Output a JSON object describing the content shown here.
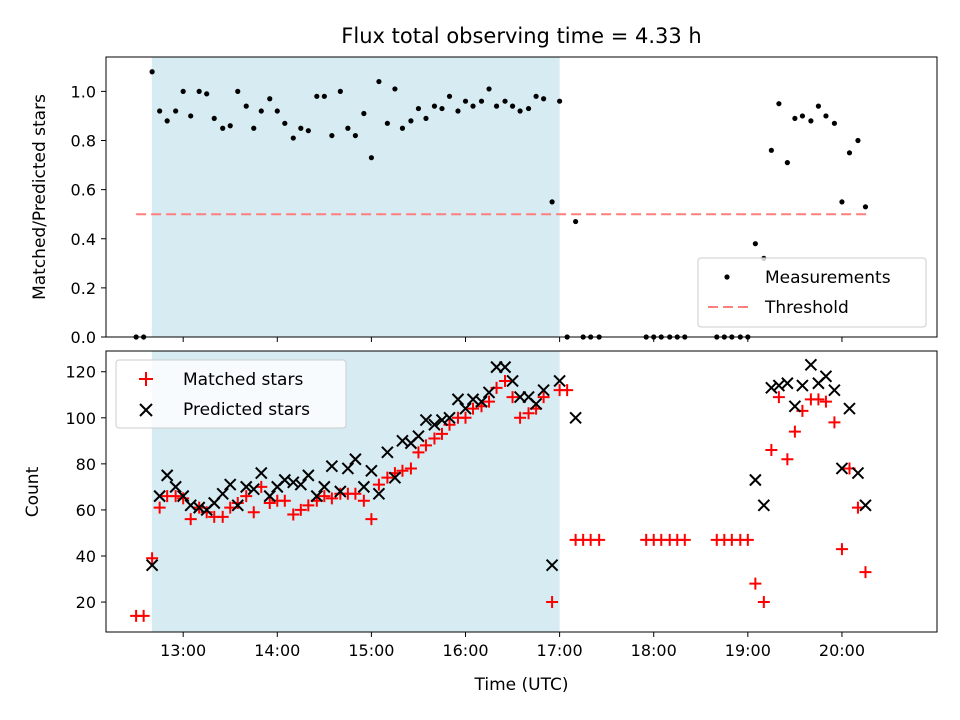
{
  "chart_data": {
    "title": "Flux total observing time = 4.33 h",
    "xlabel": "Time (UTC)",
    "xlim": [
      12.18,
      21.01
    ],
    "xticks": [
      {
        "v": 13,
        "label": "13:00"
      },
      {
        "v": 14,
        "label": "14:00"
      },
      {
        "v": 15,
        "label": "15:00"
      },
      {
        "v": 16,
        "label": "16:00"
      },
      {
        "v": 17,
        "label": "17:00"
      },
      {
        "v": 18,
        "label": "18:00"
      },
      {
        "v": 19,
        "label": "19:00"
      },
      {
        "v": 20,
        "label": "20:00"
      }
    ],
    "shaded_span": [
      12.667,
      17.0
    ],
    "shade_color": "#add8e6",
    "top": {
      "type": "scatter",
      "ylabel": "Matched/Predicted stars",
      "ylim": [
        0,
        1.14
      ],
      "yticks": [
        "0.0",
        "0.2",
        "0.4",
        "0.6",
        "0.8",
        "1.0"
      ],
      "threshold": 0.5,
      "threshold_color": "#ff7f7f",
      "threshold_x": [
        12.5,
        20.27
      ],
      "legend": [
        "Measurements",
        "Threshold"
      ],
      "points": [
        [
          12.5,
          0
        ],
        [
          12.58,
          0
        ],
        [
          12.67,
          1.08
        ],
        [
          12.75,
          0.92
        ],
        [
          12.83,
          0.88
        ],
        [
          12.92,
          0.92
        ],
        [
          13.0,
          1.0
        ],
        [
          13.08,
          0.9
        ],
        [
          13.17,
          1.0
        ],
        [
          13.25,
          0.99
        ],
        [
          13.33,
          0.89
        ],
        [
          13.42,
          0.85
        ],
        [
          13.5,
          0.86
        ],
        [
          13.58,
          1.0
        ],
        [
          13.67,
          0.94
        ],
        [
          13.75,
          0.85
        ],
        [
          13.83,
          0.92
        ],
        [
          13.92,
          0.97
        ],
        [
          14.0,
          0.92
        ],
        [
          14.08,
          0.87
        ],
        [
          14.17,
          0.81
        ],
        [
          14.25,
          0.85
        ],
        [
          14.33,
          0.84
        ],
        [
          14.42,
          0.98
        ],
        [
          14.5,
          0.98
        ],
        [
          14.58,
          0.82
        ],
        [
          14.67,
          1.0
        ],
        [
          14.75,
          0.85
        ],
        [
          14.83,
          0.82
        ],
        [
          14.92,
          0.91
        ],
        [
          15.0,
          0.73
        ],
        [
          15.08,
          1.04
        ],
        [
          15.17,
          0.87
        ],
        [
          15.25,
          1.01
        ],
        [
          15.33,
          0.85
        ],
        [
          15.42,
          0.88
        ],
        [
          15.5,
          0.93
        ],
        [
          15.58,
          0.89
        ],
        [
          15.67,
          0.94
        ],
        [
          15.75,
          0.93
        ],
        [
          15.83,
          0.98
        ],
        [
          15.92,
          0.92
        ],
        [
          16.0,
          0.96
        ],
        [
          16.08,
          0.94
        ],
        [
          16.17,
          0.96
        ],
        [
          16.25,
          1.01
        ],
        [
          16.33,
          0.94
        ],
        [
          16.42,
          0.96
        ],
        [
          16.5,
          0.94
        ],
        [
          16.58,
          0.92
        ],
        [
          16.67,
          0.93
        ],
        [
          16.75,
          0.98
        ],
        [
          16.83,
          0.97
        ],
        [
          16.92,
          0.55
        ],
        [
          17.0,
          0.96
        ],
        [
          17.08,
          0
        ],
        [
          17.17,
          0.47
        ],
        [
          17.25,
          0
        ],
        [
          17.33,
          0
        ],
        [
          17.42,
          0
        ],
        [
          17.92,
          0
        ],
        [
          18.0,
          0
        ],
        [
          18.08,
          0
        ],
        [
          18.17,
          0
        ],
        [
          18.25,
          0
        ],
        [
          18.33,
          0
        ],
        [
          18.67,
          0
        ],
        [
          18.75,
          0
        ],
        [
          18.83,
          0
        ],
        [
          18.92,
          0
        ],
        [
          19.0,
          0
        ],
        [
          19.08,
          0.38
        ],
        [
          19.17,
          0.32
        ],
        [
          19.25,
          0.76
        ],
        [
          19.33,
          0.95
        ],
        [
          19.42,
          0.71
        ],
        [
          19.5,
          0.89
        ],
        [
          19.58,
          0.9
        ],
        [
          19.67,
          0.88
        ],
        [
          19.75,
          0.94
        ],
        [
          19.83,
          0.9
        ],
        [
          19.92,
          0.87
        ],
        [
          20.0,
          0.55
        ],
        [
          20.08,
          0.75
        ],
        [
          20.17,
          0.8
        ],
        [
          20.25,
          0.53
        ]
      ]
    },
    "bottom": {
      "type": "scatter",
      "ylabel": "Count",
      "ylim": [
        7,
        129
      ],
      "yticks": [
        "20",
        "40",
        "60",
        "80",
        "100",
        "120"
      ],
      "legend": [
        "Matched stars",
        "Predicted stars"
      ],
      "matched_color": "#ff0000",
      "predicted_color": "#000000",
      "matched": [
        [
          12.5,
          14
        ],
        [
          12.58,
          14
        ],
        [
          12.67,
          39
        ],
        [
          12.75,
          61
        ],
        [
          12.83,
          66
        ],
        [
          12.92,
          66
        ],
        [
          13.0,
          65
        ],
        [
          13.08,
          56
        ],
        [
          13.17,
          61
        ],
        [
          13.25,
          59
        ],
        [
          13.33,
          57
        ],
        [
          13.42,
          57
        ],
        [
          13.5,
          61
        ],
        [
          13.58,
          63
        ],
        [
          13.67,
          66
        ],
        [
          13.75,
          59
        ],
        [
          13.83,
          70
        ],
        [
          13.92,
          63
        ],
        [
          14.0,
          64
        ],
        [
          14.08,
          64
        ],
        [
          14.17,
          58
        ],
        [
          14.25,
          60
        ],
        [
          14.33,
          62
        ],
        [
          14.42,
          64
        ],
        [
          14.5,
          66
        ],
        [
          14.58,
          65
        ],
        [
          14.67,
          67
        ],
        [
          14.75,
          67
        ],
        [
          14.83,
          67
        ],
        [
          14.92,
          64
        ],
        [
          15.0,
          56
        ],
        [
          15.08,
          71
        ],
        [
          15.17,
          74
        ],
        [
          15.25,
          76
        ],
        [
          15.33,
          77
        ],
        [
          15.42,
          78
        ],
        [
          15.5,
          85
        ],
        [
          15.58,
          88
        ],
        [
          15.67,
          91
        ],
        [
          15.75,
          93
        ],
        [
          15.83,
          97
        ],
        [
          15.92,
          100
        ],
        [
          16.0,
          100
        ],
        [
          16.08,
          104
        ],
        [
          16.17,
          105
        ],
        [
          16.25,
          107
        ],
        [
          16.33,
          113
        ],
        [
          16.42,
          116
        ],
        [
          16.5,
          109
        ],
        [
          16.58,
          100
        ],
        [
          16.67,
          102
        ],
        [
          16.75,
          104
        ],
        [
          16.83,
          109
        ],
        [
          16.92,
          20
        ],
        [
          17.0,
          112
        ],
        [
          17.08,
          112
        ],
        [
          17.17,
          47
        ],
        [
          17.25,
          47
        ],
        [
          17.33,
          47
        ],
        [
          17.42,
          47
        ],
        [
          17.92,
          47
        ],
        [
          18.0,
          47
        ],
        [
          18.08,
          47
        ],
        [
          18.17,
          47
        ],
        [
          18.25,
          47
        ],
        [
          18.33,
          47
        ],
        [
          18.67,
          47
        ],
        [
          18.75,
          47
        ],
        [
          18.83,
          47
        ],
        [
          18.92,
          47
        ],
        [
          19.0,
          47
        ],
        [
          19.08,
          28
        ],
        [
          19.17,
          20
        ],
        [
          19.25,
          86
        ],
        [
          19.33,
          109
        ],
        [
          19.42,
          82
        ],
        [
          19.5,
          94
        ],
        [
          19.58,
          103
        ],
        [
          19.67,
          108
        ],
        [
          19.75,
          108
        ],
        [
          19.83,
          107
        ],
        [
          19.92,
          98
        ],
        [
          20.0,
          43
        ],
        [
          20.08,
          78
        ],
        [
          20.17,
          61
        ],
        [
          20.25,
          33
        ]
      ],
      "predicted": [
        [
          12.67,
          36
        ],
        [
          12.75,
          66
        ],
        [
          12.83,
          75
        ],
        [
          12.92,
          70
        ],
        [
          13.0,
          66
        ],
        [
          13.08,
          62
        ],
        [
          13.17,
          61
        ],
        [
          13.25,
          60
        ],
        [
          13.33,
          63
        ],
        [
          13.42,
          67
        ],
        [
          13.5,
          71
        ],
        [
          13.58,
          62
        ],
        [
          13.67,
          70
        ],
        [
          13.75,
          69
        ],
        [
          13.83,
          76
        ],
        [
          13.92,
          66
        ],
        [
          14.0,
          70
        ],
        [
          14.08,
          73
        ],
        [
          14.17,
          72
        ],
        [
          14.25,
          71
        ],
        [
          14.33,
          75
        ],
        [
          14.42,
          66
        ],
        [
          14.5,
          70
        ],
        [
          14.58,
          79
        ],
        [
          14.67,
          68
        ],
        [
          14.75,
          78
        ],
        [
          14.83,
          82
        ],
        [
          14.92,
          70
        ],
        [
          15.0,
          77
        ],
        [
          15.08,
          67
        ],
        [
          15.17,
          85
        ],
        [
          15.25,
          74
        ],
        [
          15.33,
          90
        ],
        [
          15.42,
          89
        ],
        [
          15.5,
          92
        ],
        [
          15.58,
          99
        ],
        [
          15.67,
          97
        ],
        [
          15.75,
          99
        ],
        [
          15.83,
          100
        ],
        [
          15.92,
          108
        ],
        [
          16.0,
          104
        ],
        [
          16.08,
          108
        ],
        [
          16.17,
          107
        ],
        [
          16.25,
          111
        ],
        [
          16.33,
          122
        ],
        [
          16.42,
          122
        ],
        [
          16.5,
          116
        ],
        [
          16.58,
          109
        ],
        [
          16.67,
          109
        ],
        [
          16.75,
          106
        ],
        [
          16.83,
          112
        ],
        [
          16.92,
          36
        ],
        [
          17.0,
          116
        ],
        [
          17.17,
          100
        ],
        [
          19.08,
          73
        ],
        [
          19.17,
          62
        ],
        [
          19.25,
          113
        ],
        [
          19.33,
          114
        ],
        [
          19.42,
          115
        ],
        [
          19.5,
          105
        ],
        [
          19.58,
          114
        ],
        [
          19.67,
          123
        ],
        [
          19.75,
          115
        ],
        [
          19.83,
          118
        ],
        [
          19.92,
          112
        ],
        [
          20.0,
          78
        ],
        [
          20.08,
          104
        ],
        [
          20.17,
          76
        ],
        [
          20.25,
          62
        ]
      ]
    }
  }
}
